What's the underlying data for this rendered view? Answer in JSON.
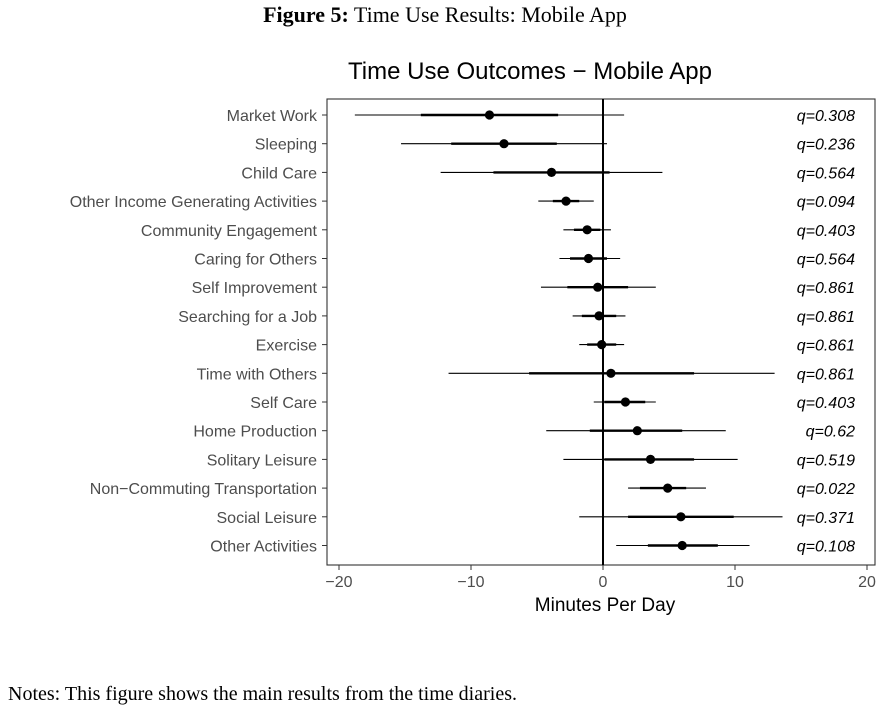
{
  "figure": {
    "label": "Figure 5:",
    "caption": "Time Use Results: Mobile App",
    "notes": "Notes: This figure shows the main results from the time diaries."
  },
  "chart_data": {
    "type": "scatter",
    "subtype": "coefficient-plot",
    "title": "Time Use Outcomes − Mobile App",
    "xlabel": "Minutes Per Day",
    "ylabel": "",
    "xlim": [
      -20.5,
      20
    ],
    "xticks": [
      -20,
      -10,
      0,
      10,
      20
    ],
    "xtick_labels": [
      "−20",
      "−10",
      "0",
      "10",
      "20"
    ],
    "grid": false,
    "reference_line": 0,
    "rows": [
      {
        "label": "Market Work",
        "estimate": -8.6,
        "ci90": [
          -13.8,
          -3.4
        ],
        "ci95": [
          -18.8,
          1.6
        ],
        "q": "q=0.308"
      },
      {
        "label": "Sleeping",
        "estimate": -7.5,
        "ci90": [
          -11.5,
          -3.5
        ],
        "ci95": [
          -15.3,
          0.3
        ],
        "q": "q=0.236"
      },
      {
        "label": "Child Care",
        "estimate": -3.9,
        "ci90": [
          -8.3,
          0.5
        ],
        "ci95": [
          -12.3,
          4.5
        ],
        "q": "q=0.564"
      },
      {
        "label": "Other Income Generating Activities",
        "estimate": -2.8,
        "ci90": [
          -3.8,
          -1.8
        ],
        "ci95": [
          -4.9,
          -0.7
        ],
        "q": "q=0.094"
      },
      {
        "label": "Community Engagement",
        "estimate": -1.2,
        "ci90": [
          -2.2,
          -0.2
        ],
        "ci95": [
          -3.0,
          0.6
        ],
        "q": "q=0.403"
      },
      {
        "label": "Caring for Others",
        "estimate": -1.1,
        "ci90": [
          -2.5,
          0.3
        ],
        "ci95": [
          -3.3,
          1.3
        ],
        "q": "q=0.564"
      },
      {
        "label": "Self Improvement",
        "estimate": -0.4,
        "ci90": [
          -2.7,
          1.9
        ],
        "ci95": [
          -4.7,
          4.0
        ],
        "q": "q=0.861"
      },
      {
        "label": "Searching for a Job",
        "estimate": -0.3,
        "ci90": [
          -1.6,
          1.0
        ],
        "ci95": [
          -2.3,
          1.7
        ],
        "q": "q=0.861"
      },
      {
        "label": "Exercise",
        "estimate": -0.1,
        "ci90": [
          -1.2,
          1.0
        ],
        "ci95": [
          -1.8,
          1.6
        ],
        "q": "q=0.861"
      },
      {
        "label": "Time with Others",
        "estimate": 0.6,
        "ci90": [
          -5.6,
          6.9
        ],
        "ci95": [
          -11.7,
          13.0
        ],
        "q": "q=0.861"
      },
      {
        "label": "Self Care",
        "estimate": 1.7,
        "ci90": [
          0.1,
          3.2
        ],
        "ci95": [
          -0.7,
          4.0
        ],
        "q": "q=0.403"
      },
      {
        "label": "Home Production",
        "estimate": 2.6,
        "ci90": [
          -1.0,
          6.0
        ],
        "ci95": [
          -4.3,
          9.3
        ],
        "q": "q=0.62"
      },
      {
        "label": "Solitary Leisure",
        "estimate": 3.6,
        "ci90": [
          0.1,
          6.9
        ],
        "ci95": [
          -3.0,
          10.2
        ],
        "q": "q=0.519"
      },
      {
        "label": "Non−Commuting Transportation",
        "estimate": 4.9,
        "ci90": [
          2.8,
          6.3
        ],
        "ci95": [
          1.9,
          7.8
        ],
        "q": "q=0.022"
      },
      {
        "label": "Social Leisure",
        "estimate": 5.9,
        "ci90": [
          1.9,
          9.9
        ],
        "ci95": [
          -1.8,
          13.6
        ],
        "q": "q=0.371"
      },
      {
        "label": "Other Activities",
        "estimate": 6.0,
        "ci90": [
          3.4,
          8.7
        ],
        "ci95": [
          1.0,
          11.1
        ],
        "q": "q=0.108"
      }
    ],
    "colors": {
      "mark": "#000000",
      "axis": "#333333",
      "label": "#4d4d4d",
      "panel_border": "#333333"
    }
  }
}
